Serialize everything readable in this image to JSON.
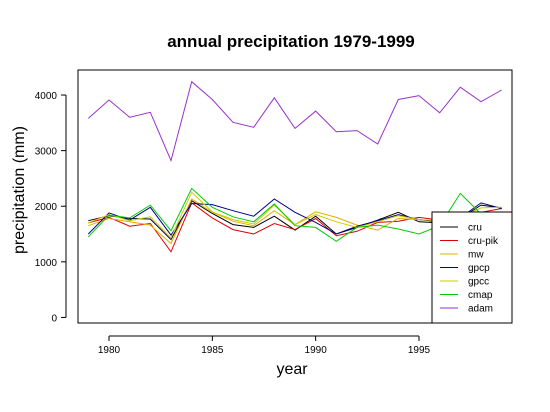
{
  "chart_data": {
    "type": "line",
    "title": "annual precipitation 1979-1999",
    "xlabel": "year",
    "ylabel": "precipitation (mm)",
    "xlim": [
      1978.5,
      1999.5
    ],
    "ylim": [
      -100,
      4450
    ],
    "x_ticks": [
      1980,
      1985,
      1990,
      1995
    ],
    "y_ticks": [
      0,
      1000,
      2000,
      3000,
      4000
    ],
    "grid": false,
    "legend_position": "bottom-right",
    "x": [
      1979,
      1980,
      1981,
      1982,
      1983,
      1984,
      1985,
      1986,
      1987,
      1988,
      1989,
      1990,
      1991,
      1992,
      1993,
      1994,
      1995,
      1996,
      1997,
      1998,
      1999
    ],
    "series": [
      {
        "name": "cru",
        "color": "#000000",
        "values": [
          1740,
          1830,
          1780,
          1770,
          1400,
          2100,
          1870,
          1670,
          1620,
          1820,
          1570,
          1820,
          1500,
          1620,
          1750,
          1890,
          1720,
          1700,
          1780,
          2020,
          1970
        ]
      },
      {
        "name": "cru-pik",
        "color": "#e00000",
        "values": [
          1700,
          1800,
          1640,
          1690,
          1180,
          2060,
          1790,
          1580,
          1500,
          1690,
          1580,
          1780,
          1470,
          1550,
          1710,
          1730,
          1800,
          1750,
          1740,
          1890,
          1960
        ]
      },
      {
        "name": "mw",
        "color": "#e0b000",
        "values": [
          1650,
          1780,
          1720,
          1660,
          1330,
          2130,
          1890,
          1730,
          1650,
          1920,
          1670,
          1900,
          1800,
          1660,
          1570,
          1780,
          1760,
          1720,
          1780,
          1810,
          1880
        ]
      },
      {
        "name": "gpcp",
        "color": "#00008b",
        "values": [
          1500,
          1880,
          1750,
          1980,
          1480,
          2050,
          2030,
          1920,
          1820,
          2130,
          1890,
          1710,
          1500,
          1640,
          1740,
          1850,
          1760,
          1720,
          1790,
          2060,
          1960
        ]
      },
      {
        "name": "gpcc",
        "color": "#cccc00",
        "values": [
          1700,
          1850,
          1740,
          1810,
          1430,
          2250,
          1900,
          1760,
          1680,
          2020,
          1670,
          1850,
          1720,
          1620,
          1720,
          1830,
          1760,
          1740,
          1800,
          1970,
          1980
        ]
      },
      {
        "name": "cmap",
        "color": "#00cc00",
        "values": [
          1450,
          1840,
          1790,
          2020,
          1560,
          2320,
          1980,
          1810,
          1720,
          2040,
          1650,
          1620,
          1370,
          1620,
          1660,
          1590,
          1500,
          1650,
          2230,
          1860,
          1880
        ]
      },
      {
        "name": "adam",
        "color": "#9932cc",
        "values": [
          3580,
          3910,
          3600,
          3690,
          2820,
          4240,
          3920,
          3510,
          3420,
          3950,
          3400,
          3710,
          3340,
          3360,
          3120,
          3920,
          3990,
          3680,
          4140,
          3880,
          4090
        ]
      }
    ]
  }
}
